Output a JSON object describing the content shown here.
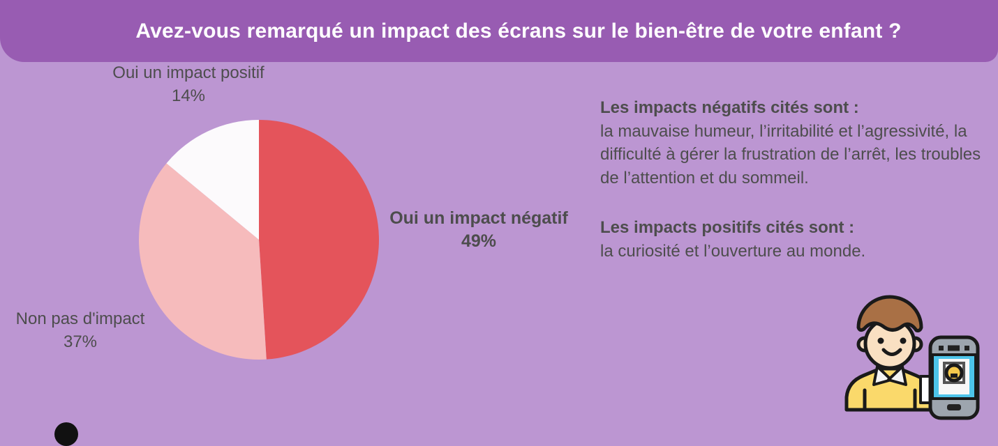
{
  "colors": {
    "page_bg": "#BC96D2",
    "header_bg": "#985CB2",
    "title_color": "#FFFFFF",
    "text_dark": "#4D4D4D",
    "hair": "#A97045",
    "skin": "#F9E0C2",
    "shirt": "#FAD96B",
    "phone_body": "#9DA5AE",
    "phone_screen": "#4DC4EA",
    "camera_yellow": "#F5C94C"
  },
  "header": {
    "title": "Avez-vous remarqué un impact des écrans sur le bien-être de votre enfant ?"
  },
  "chart_data": {
    "type": "pie",
    "title": "Avez-vous remarqué un impact des écrans sur le bien-être de votre enfant ?",
    "start_angle_deg": 0,
    "direction": "clockwise",
    "legend_position": "outside-labels",
    "slices": [
      {
        "label": "Oui un impact négatif",
        "value": 49,
        "pct": "49%",
        "color": "#E4545B"
      },
      {
        "label": "Non pas d'impact",
        "value": 37,
        "pct": "37%",
        "color": "#F6BBBC"
      },
      {
        "label": "Oui un impact positif",
        "value": 14,
        "pct": "14%",
        "color": "#FCFAFC"
      }
    ]
  },
  "info": {
    "negative_heading": "Les impacts négatifs cités sont :",
    "negative_body": "la mauvaise humeur, l’irritabilité et l’agressivité, la difficulté à gérer la frustration de l’arrêt, les troubles de l’attention et du sommeil.",
    "positive_heading": "Les impacts positifs cités sont :",
    "positive_body": "la curiosité et l’ouverture au monde."
  },
  "illustration": {
    "name": "man-holding-smartphone"
  }
}
